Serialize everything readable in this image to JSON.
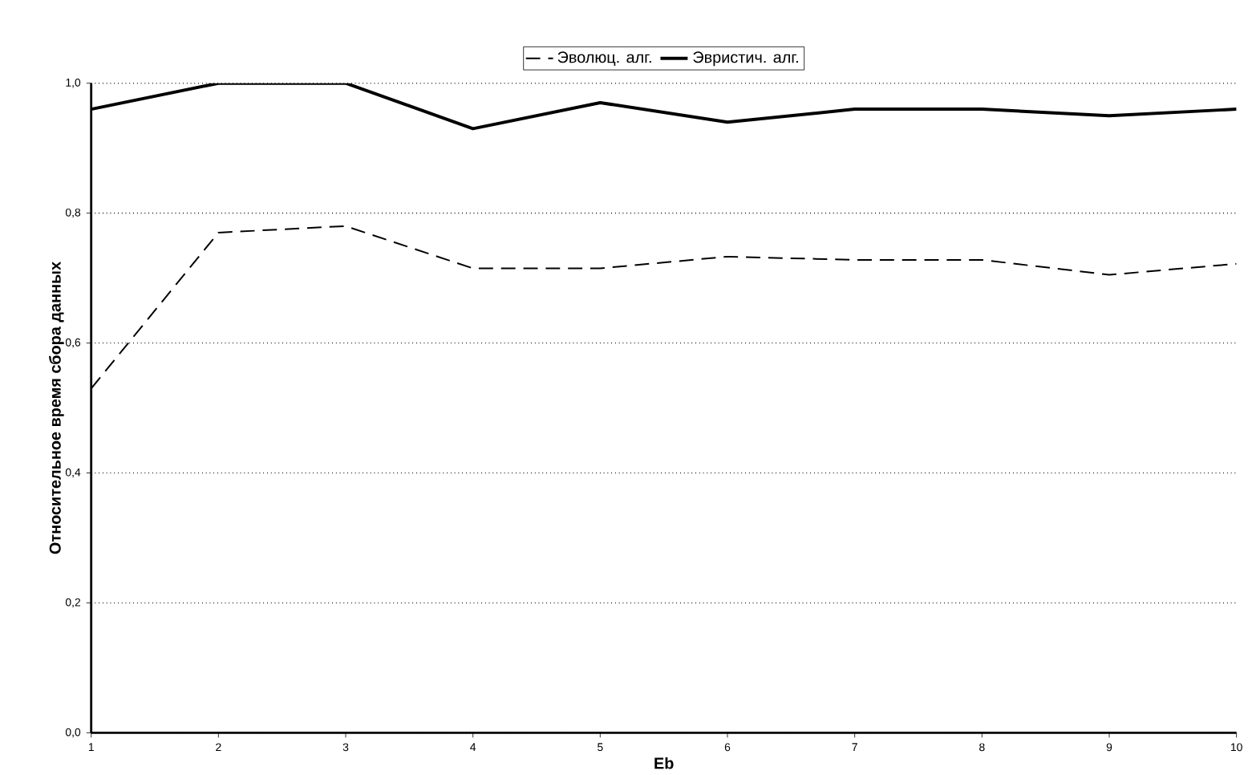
{
  "chart_data": {
    "type": "line",
    "xlabel": "Eb",
    "ylabel": "Относительное время сбора данных",
    "x": [
      1,
      2,
      3,
      4,
      5,
      6,
      7,
      8,
      9,
      10
    ],
    "series": [
      {
        "name": "Эволюц. алг.",
        "color": "#000000",
        "line_style": "dashed",
        "values": [
          0.53,
          0.77,
          0.78,
          0.715,
          0.715,
          0.733,
          0.728,
          0.728,
          0.705,
          0.722
        ]
      },
      {
        "name": "Эвристич. алг.",
        "color": "#000000",
        "line_style": "solid",
        "values": [
          0.96,
          1.0,
          1.0,
          0.93,
          0.97,
          0.94,
          0.96,
          0.96,
          0.95,
          0.96
        ]
      }
    ],
    "xlim": [
      1,
      10
    ],
    "xticks": [
      1,
      2,
      3,
      4,
      5,
      6,
      7,
      8,
      9,
      10
    ],
    "ylim": [
      0,
      1
    ],
    "yticks": [
      {
        "value": 0,
        "label": "0,0"
      },
      {
        "value": 0.2,
        "label": "0,2"
      },
      {
        "value": 0.4,
        "label": "0,4"
      },
      {
        "value": 0.6,
        "label": "0,6"
      },
      {
        "value": 0.8,
        "label": "0,8"
      },
      {
        "value": 1.0,
        "label": "1,0"
      }
    ],
    "grid": "y",
    "legend": "top"
  }
}
